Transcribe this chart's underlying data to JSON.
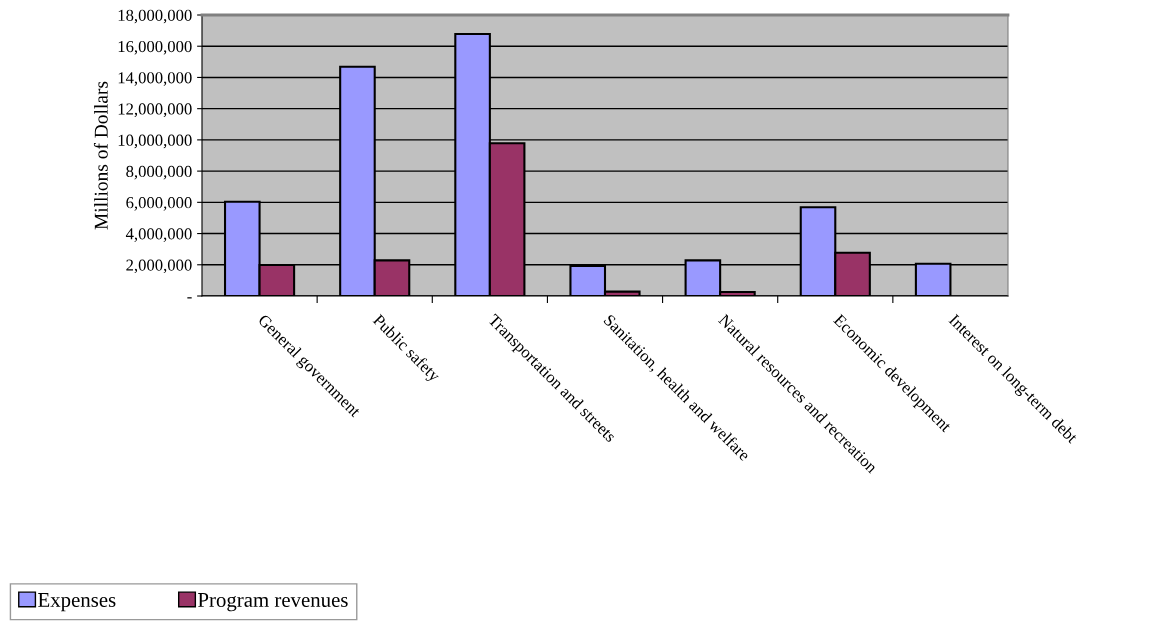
{
  "chart_data": {
    "type": "bar",
    "ylabel": "Millions of Dollars",
    "categories": [
      "General government",
      "Public safety",
      "Transportation and streets",
      "Sanitation, health and welfare",
      "Natural resources and recreation",
      "Economic development",
      "Interest on long-term debt"
    ],
    "series": [
      {
        "name": "Expenses",
        "color": "#9999ff",
        "values": [
          6040000,
          14690000,
          16780000,
          1920000,
          2280000,
          5680000,
          2070000
        ]
      },
      {
        "name": "Program revenues",
        "color": "#993366",
        "values": [
          1990000,
          2280000,
          9780000,
          280000,
          260000,
          2770000,
          null
        ]
      }
    ],
    "ylim": [
      0,
      18000000
    ],
    "yticks": [
      {
        "value": 0,
        "label": "-"
      },
      {
        "value": 2000000,
        "label": "2,000,000"
      },
      {
        "value": 4000000,
        "label": "4,000,000"
      },
      {
        "value": 6000000,
        "label": "6,000,000"
      },
      {
        "value": 8000000,
        "label": "8,000,000"
      },
      {
        "value": 10000000,
        "label": "10,000,000"
      },
      {
        "value": 12000000,
        "label": "12,000,000"
      },
      {
        "value": 14000000,
        "label": "14,000,000"
      },
      {
        "value": 16000000,
        "label": "16,000,000"
      },
      {
        "value": 18000000,
        "label": "18,000,000"
      }
    ],
    "grid": "y",
    "legend": "bottom left"
  }
}
